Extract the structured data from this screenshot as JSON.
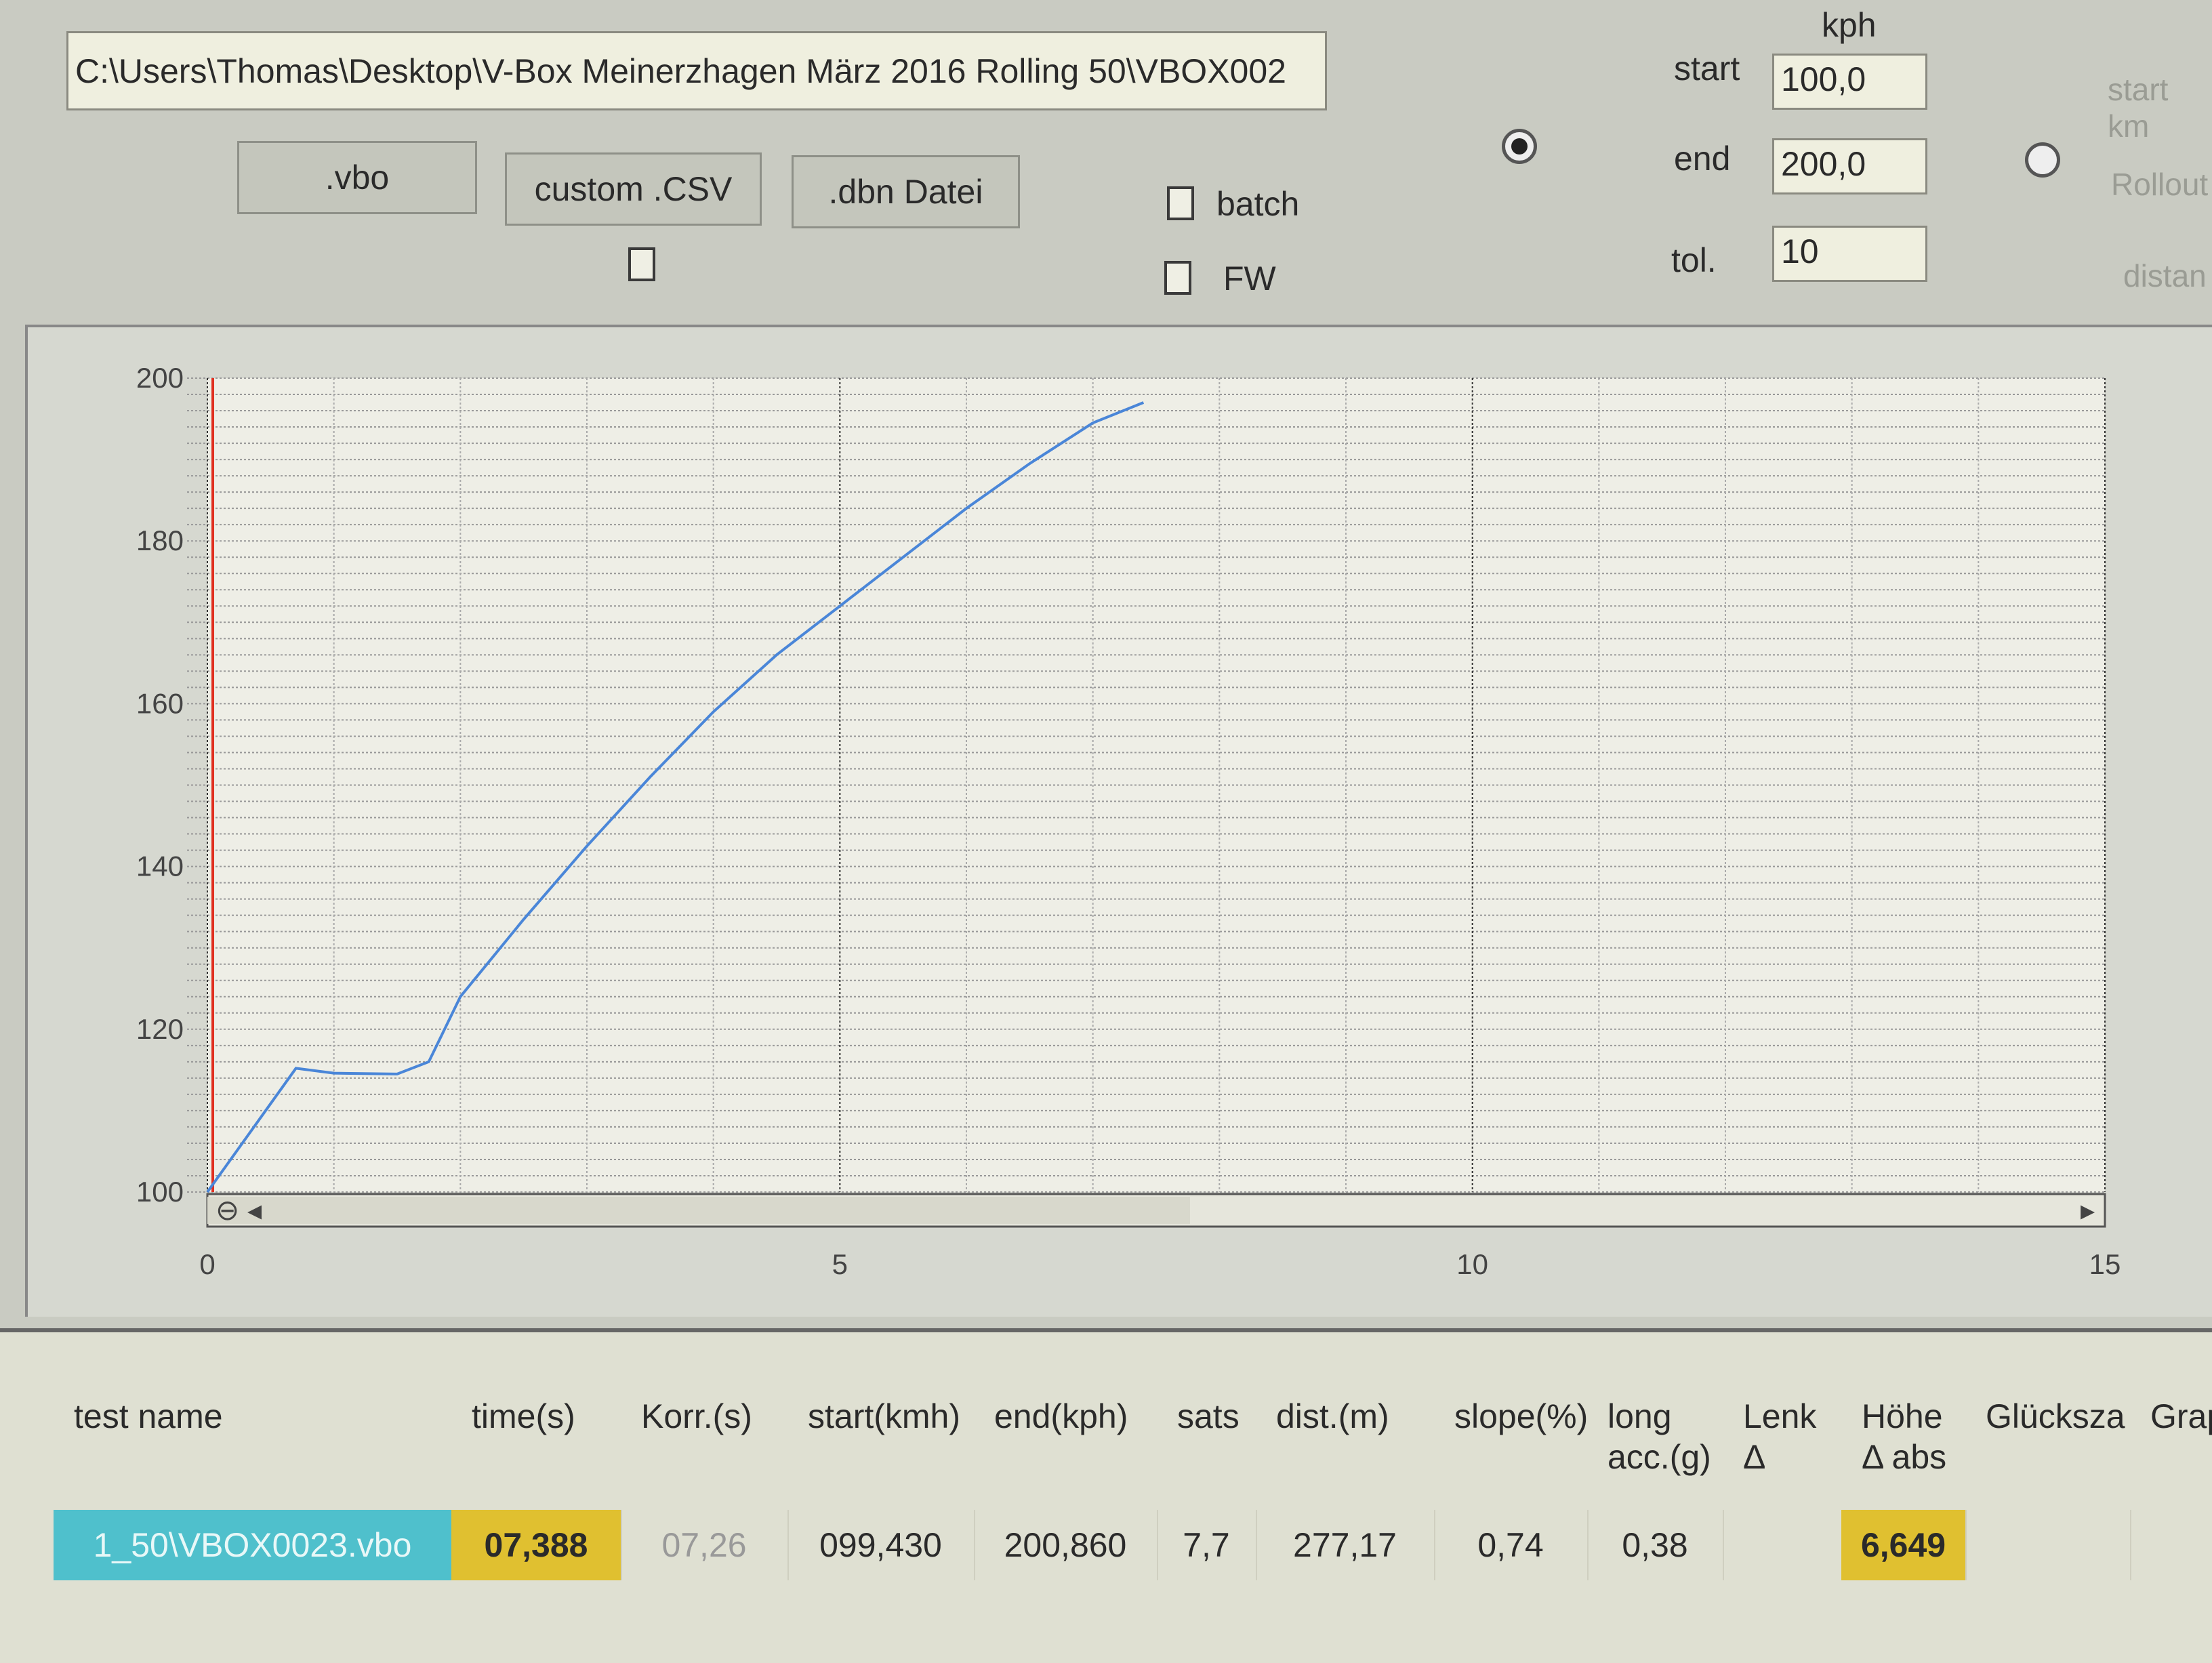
{
  "path": "C:\\Users\\Thomas\\Desktop\\V-Box Meinerzhagen März 2016 Rolling 50\\VBOX002",
  "buttons": {
    "vbo": ".vbo",
    "custom_csv": "custom .CSV",
    "dbn": ".dbn Datei"
  },
  "checkboxes": {
    "batch": {
      "label": "batch",
      "checked": false
    },
    "fw": {
      "label": "FW",
      "checked": false
    },
    "unnamed": {
      "checked": false
    }
  },
  "speed": {
    "unit": "kph",
    "start_label": "start",
    "start_value": "100,0",
    "end_label": "end",
    "end_value": "200,0",
    "tol_label": "tol.",
    "tol_value": "10",
    "radio_selected": true
  },
  "right_options": {
    "start_km": "start km",
    "rollout": "Rollout",
    "distance": "distan",
    "radio_selected": false
  },
  "chart_data": {
    "type": "line",
    "xlim": [
      0,
      15
    ],
    "ylim": [
      100,
      200
    ],
    "x_ticks": [
      "0",
      "5",
      "10",
      "15"
    ],
    "y_ticks": [
      "100",
      "120",
      "140",
      "160",
      "180",
      "200"
    ],
    "grid": true,
    "series": [
      {
        "color": "#4a86d8",
        "x": [
          0,
          0.7,
          1.0,
          1.5,
          1.75,
          2.0,
          2.5,
          3.0,
          3.5,
          4.0,
          4.5,
          5.0,
          5.5,
          6.0,
          6.5,
          7.0,
          7.4
        ],
        "y": [
          100,
          115.2,
          114.6,
          114.5,
          116,
          124,
          133.5,
          142.5,
          151,
          159,
          166,
          172,
          178,
          184,
          189.5,
          194.5,
          197
        ]
      }
    ]
  },
  "table": {
    "columns": [
      "test name",
      "time(s)",
      "Korr.(s)",
      "start(kmh)",
      "end(kph)",
      "sats",
      "dist.(m)",
      "slope(%)",
      "long acc.(g)",
      "Lenk Δ",
      "Höhe Δ abs",
      "Glücksza",
      "Grap"
    ],
    "rows": [
      [
        "1_50\\VBOX0023.vbo",
        "07,388",
        "07,26",
        "099,430",
        "200,860",
        "7,7",
        "277,17",
        "0,74",
        "0,38",
        "",
        "6,649",
        "",
        ""
      ]
    ],
    "colors": {
      "name_cell": "#4fc0cc",
      "highlight": "#e0c030"
    }
  }
}
